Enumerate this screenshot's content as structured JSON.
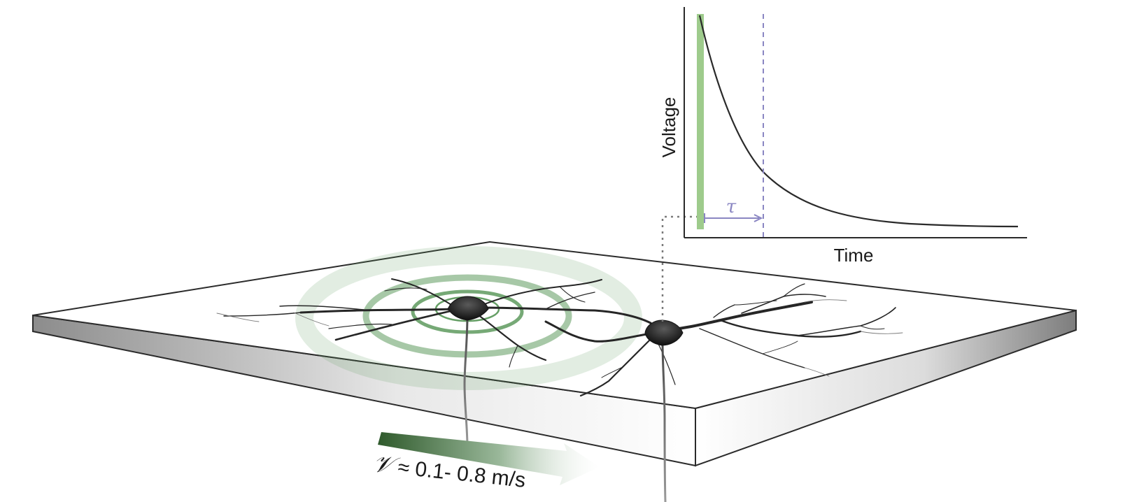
{
  "inset_plot": {
    "xlabel": "Time",
    "ylabel": "Voltage",
    "tau_label": "τ",
    "curve": "exponential-decay",
    "stimulus_color": "#9ecb8c",
    "tau_marker_color": "#8a86c2",
    "curve_color": "#2a2a2a"
  },
  "wave": {
    "ring_color": "#5e9a5e",
    "rings": 4
  },
  "velocity": {
    "symbol": "𝒱",
    "text": "≈ 0.1- 0.8 m/s",
    "arrow_color_start": "#2f5a2c",
    "arrow_color_end": "#ffffff"
  },
  "slab": {
    "top_color": "#ffffff",
    "edge_color": "#7a7a7a",
    "outline_color": "#2b2b2b"
  }
}
